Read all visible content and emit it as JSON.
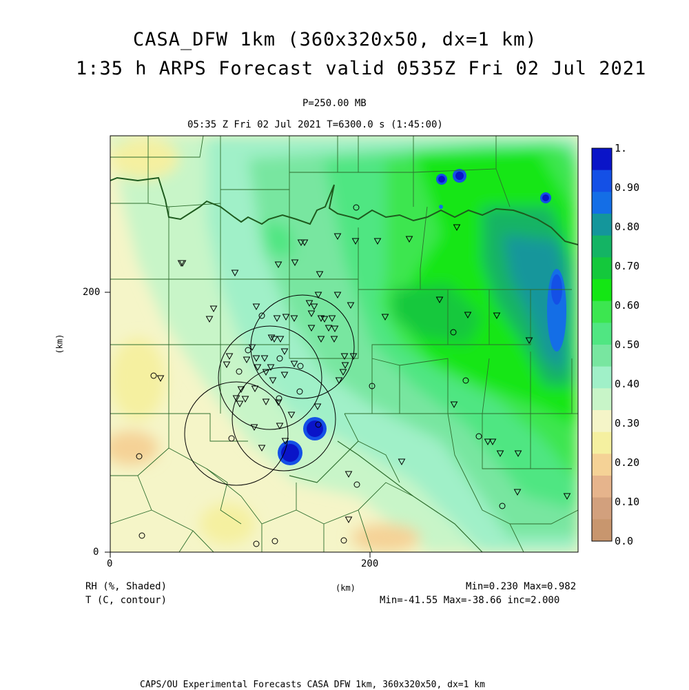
{
  "header": {
    "title_line1": "CASA_DFW 1km (360x320x50, dx=1 km)",
    "title_line2": "1:35 h ARPS Forecast valid 0535Z Fri 02 Jul 2021",
    "level": "P=250.00 MB",
    "time": "05:35 Z Fri 02 Jul 2021    T=6300.0 s (1:45:00)"
  },
  "axes": {
    "x_ticks": [
      "0",
      "200"
    ],
    "y_ticks": [
      "0",
      "200"
    ],
    "x_label": "(km)",
    "y_label": "(km)"
  },
  "colorbar": {
    "labels": [
      "1.",
      "0.90",
      "0.80",
      "0.70",
      "0.60",
      "0.50",
      "0.40",
      "0.30",
      "0.20",
      "0.10",
      "0.0"
    ],
    "colors": [
      "#0a14c8",
      "#1450e6",
      "#146ee6",
      "#14969b",
      "#14b464",
      "#14c83c",
      "#14e614",
      "#3ce650",
      "#50e682",
      "#78e6a0",
      "#a0f0c8",
      "#c8f5c8",
      "#f5f5c8",
      "#f5f0a0",
      "#f5d296",
      "#e6b48c",
      "#d2a07d",
      "#c8966e"
    ]
  },
  "footer": {
    "rh_label": "RH (%, Shaded)",
    "t_label": "T (C, contour)",
    "km_label": "(km)",
    "rh_stats": "Min=0.230 Max=0.982",
    "t_stats": "Min=-41.55 Max=-38.66 inc=2.000",
    "credit": "CAPS/OU Experimental Forecasts  CASA DFW 1km, 360x320x50, dx=1 km"
  },
  "colors": {
    "state_line": "#1e5a1e",
    "county_line": "#2e6e2e"
  }
}
